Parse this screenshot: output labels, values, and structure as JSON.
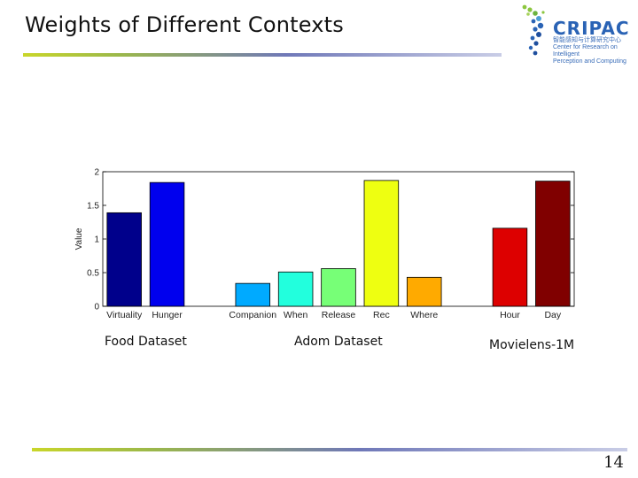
{
  "slide": {
    "title": "Weights of Different Contexts",
    "page_number": "14"
  },
  "logo": {
    "name": "CRIPAC",
    "subtitle": "智能感知与计算研究中心\nCenter for Research on Intelligent\nPerception and Computing"
  },
  "datasets": {
    "food": "Food Dataset",
    "adom": "Adom Dataset",
    "movielens": "Movielens-1M"
  },
  "chart_data": {
    "type": "bar",
    "title": "",
    "xlabel": "",
    "ylabel": "Value",
    "ylim": [
      0,
      2
    ],
    "yticks": [
      0,
      0.5,
      1,
      1.5,
      2
    ],
    "ytick_labels": [
      "0",
      "0.5",
      "1",
      "1.5",
      "2"
    ],
    "grid": false,
    "slots": 11,
    "bars": [
      {
        "category": "Virtuality",
        "value": 1.39,
        "color": "#00008b",
        "slot": 0,
        "group": "Food Dataset"
      },
      {
        "category": "Hunger",
        "value": 1.84,
        "color": "#0000ee",
        "slot": 1,
        "group": "Food Dataset"
      },
      {
        "category": "Companion",
        "value": 0.34,
        "color": "#00aaff",
        "slot": 3,
        "group": "Adom Dataset"
      },
      {
        "category": "When",
        "value": 0.51,
        "color": "#22ffdd",
        "slot": 4,
        "group": "Adom Dataset"
      },
      {
        "category": "Release",
        "value": 0.56,
        "color": "#77ff77",
        "slot": 5,
        "group": "Adom Dataset"
      },
      {
        "category": "Rec",
        "value": 1.87,
        "color": "#eeff11",
        "slot": 6,
        "group": "Adom Dataset"
      },
      {
        "category": "Where",
        "value": 0.43,
        "color": "#ffaa00",
        "slot": 7,
        "group": "Adom Dataset"
      },
      {
        "category": "Hour",
        "value": 1.16,
        "color": "#dd0000",
        "slot": 9,
        "group": "Movielens-1M"
      },
      {
        "category": "Day",
        "value": 1.86,
        "color": "#800000",
        "slot": 10,
        "group": "Movielens-1M"
      }
    ]
  }
}
